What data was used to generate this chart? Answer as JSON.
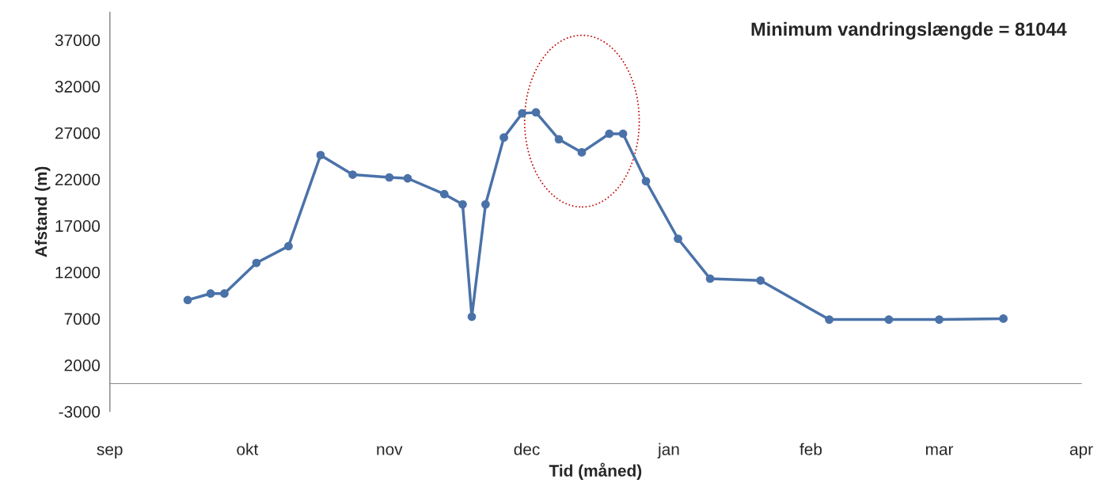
{
  "chart_data": {
    "type": "line",
    "xlabel": "Tid (måned)",
    "ylabel": "Afstand (m)",
    "annotations": [
      "Minimum vandringslængde = 81044"
    ],
    "series": [
      {
        "color": "#4a72a8",
        "x": [
          "2000-09-18",
          "2000-09-23",
          "2000-09-26",
          "2000-10-03",
          "2000-10-10",
          "2000-10-17",
          "2000-10-24",
          "2000-11-01",
          "2000-11-05",
          "2000-11-13",
          "2000-11-17",
          "2000-11-19",
          "2000-11-22",
          "2000-11-26",
          "2000-11-30",
          "2000-12-03",
          "2000-12-08",
          "2000-12-13",
          "2000-12-19",
          "2000-12-22",
          "2000-12-27",
          "2001-01-03",
          "2001-01-10",
          "2001-01-21",
          "2001-02-05",
          "2001-02-18",
          "2001-03-01",
          "2001-03-15"
        ],
        "values": [
          9000,
          9700,
          9700,
          13000,
          14800,
          24600,
          22500,
          22200,
          22100,
          20400,
          19300,
          7200,
          19300,
          26500,
          29100,
          29200,
          26300,
          24900,
          26900,
          26900,
          21800,
          15600,
          11300,
          11100,
          6900,
          6900,
          6900,
          7000
        ]
      }
    ],
    "xlim": [
      "2000-09-01",
      "2001-04-01"
    ],
    "xticks": [
      {
        "value": "2000-09-01",
        "label": "sep"
      },
      {
        "value": "2000-10-01",
        "label": "okt"
      },
      {
        "value": "2000-11-01",
        "label": "nov"
      },
      {
        "value": "2000-12-01",
        "label": "dec"
      },
      {
        "value": "2001-01-01",
        "label": "jan"
      },
      {
        "value": "2001-02-01",
        "label": "feb"
      },
      {
        "value": "2001-03-01",
        "label": "mar"
      },
      {
        "value": "2001-04-01",
        "label": "apr"
      }
    ],
    "ylim": [
      -3000,
      40000
    ],
    "yticks": [
      -3000,
      2000,
      7000,
      12000,
      17000,
      22000,
      27000,
      32000,
      37000
    ],
    "grid": false,
    "legend": false,
    "marker": "circle",
    "line_style": "solid"
  }
}
